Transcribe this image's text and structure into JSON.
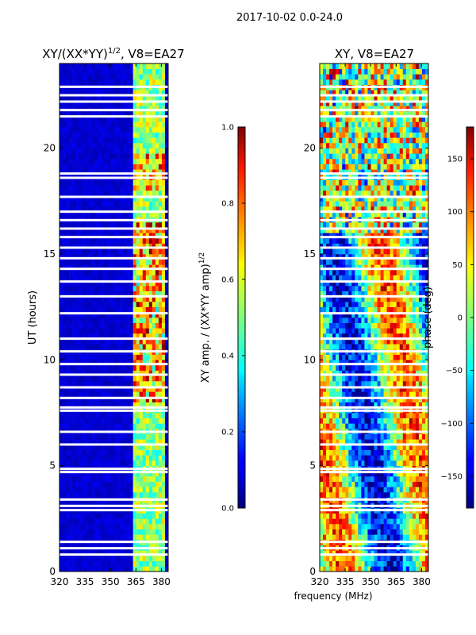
{
  "figure": {
    "suptitle": "2017-10-02 0.0-24.0",
    "shared_xlabel": "frequency (MHz)"
  },
  "chart_data": [
    {
      "type": "heatmap",
      "title": "XY/(XX*YY)^1/2, V8=EA27",
      "title_main": "XY/(XX*YY)",
      "title_exp": "1/2",
      "title_tail": ", V8=EA27",
      "xlabel": "frequency (MHz)",
      "ylabel": "UT (hours)",
      "xlim": [
        320,
        384
      ],
      "ylim": [
        0,
        24
      ],
      "xticks": [
        320,
        335,
        350,
        365,
        380
      ],
      "yticks": [
        0,
        5,
        10,
        15,
        20
      ],
      "colorbar": {
        "label": "XY amp. / (XX*YY amp)^1/2",
        "label_main": "XY amp. / (XX*YY amp)",
        "label_exp": "1/2",
        "range": [
          0.0,
          1.0
        ],
        "ticks": [
          "0.0",
          "0.2",
          "0.4",
          "0.6",
          "0.8",
          "1.0"
        ]
      },
      "colormap": "jet",
      "flagged_hours_approx": [
        0.8,
        1.1,
        1.4,
        2.9,
        3.1,
        3.4,
        4.7,
        4.85,
        6.0,
        6.6,
        7.6,
        7.75,
        8.2,
        8.7,
        9.3,
        9.8,
        10.4,
        11.0,
        12.2,
        13.0,
        13.7,
        14.3,
        14.8,
        15.3,
        15.8,
        16.2,
        16.6,
        17.0,
        17.7,
        18.6,
        18.8,
        21.5,
        21.8,
        22.2,
        22.5,
        22.9
      ],
      "signal_band_mhz": [
        363,
        382
      ]
    },
    {
      "type": "heatmap",
      "title": "XY, V8=EA27",
      "xlabel": "frequency (MHz)",
      "ylabel": "",
      "xlim": [
        320,
        384
      ],
      "ylim": [
        0,
        24
      ],
      "xticks": [
        320,
        335,
        350,
        365,
        380
      ],
      "yticks": [
        0,
        5,
        10,
        15,
        20
      ],
      "colorbar": {
        "label": "phase (deg)",
        "range": [
          -180,
          180
        ],
        "ticks": [
          "-150",
          "-100",
          "-50",
          "0",
          "50",
          "100",
          "150"
        ]
      },
      "colormap": "jet"
    }
  ]
}
